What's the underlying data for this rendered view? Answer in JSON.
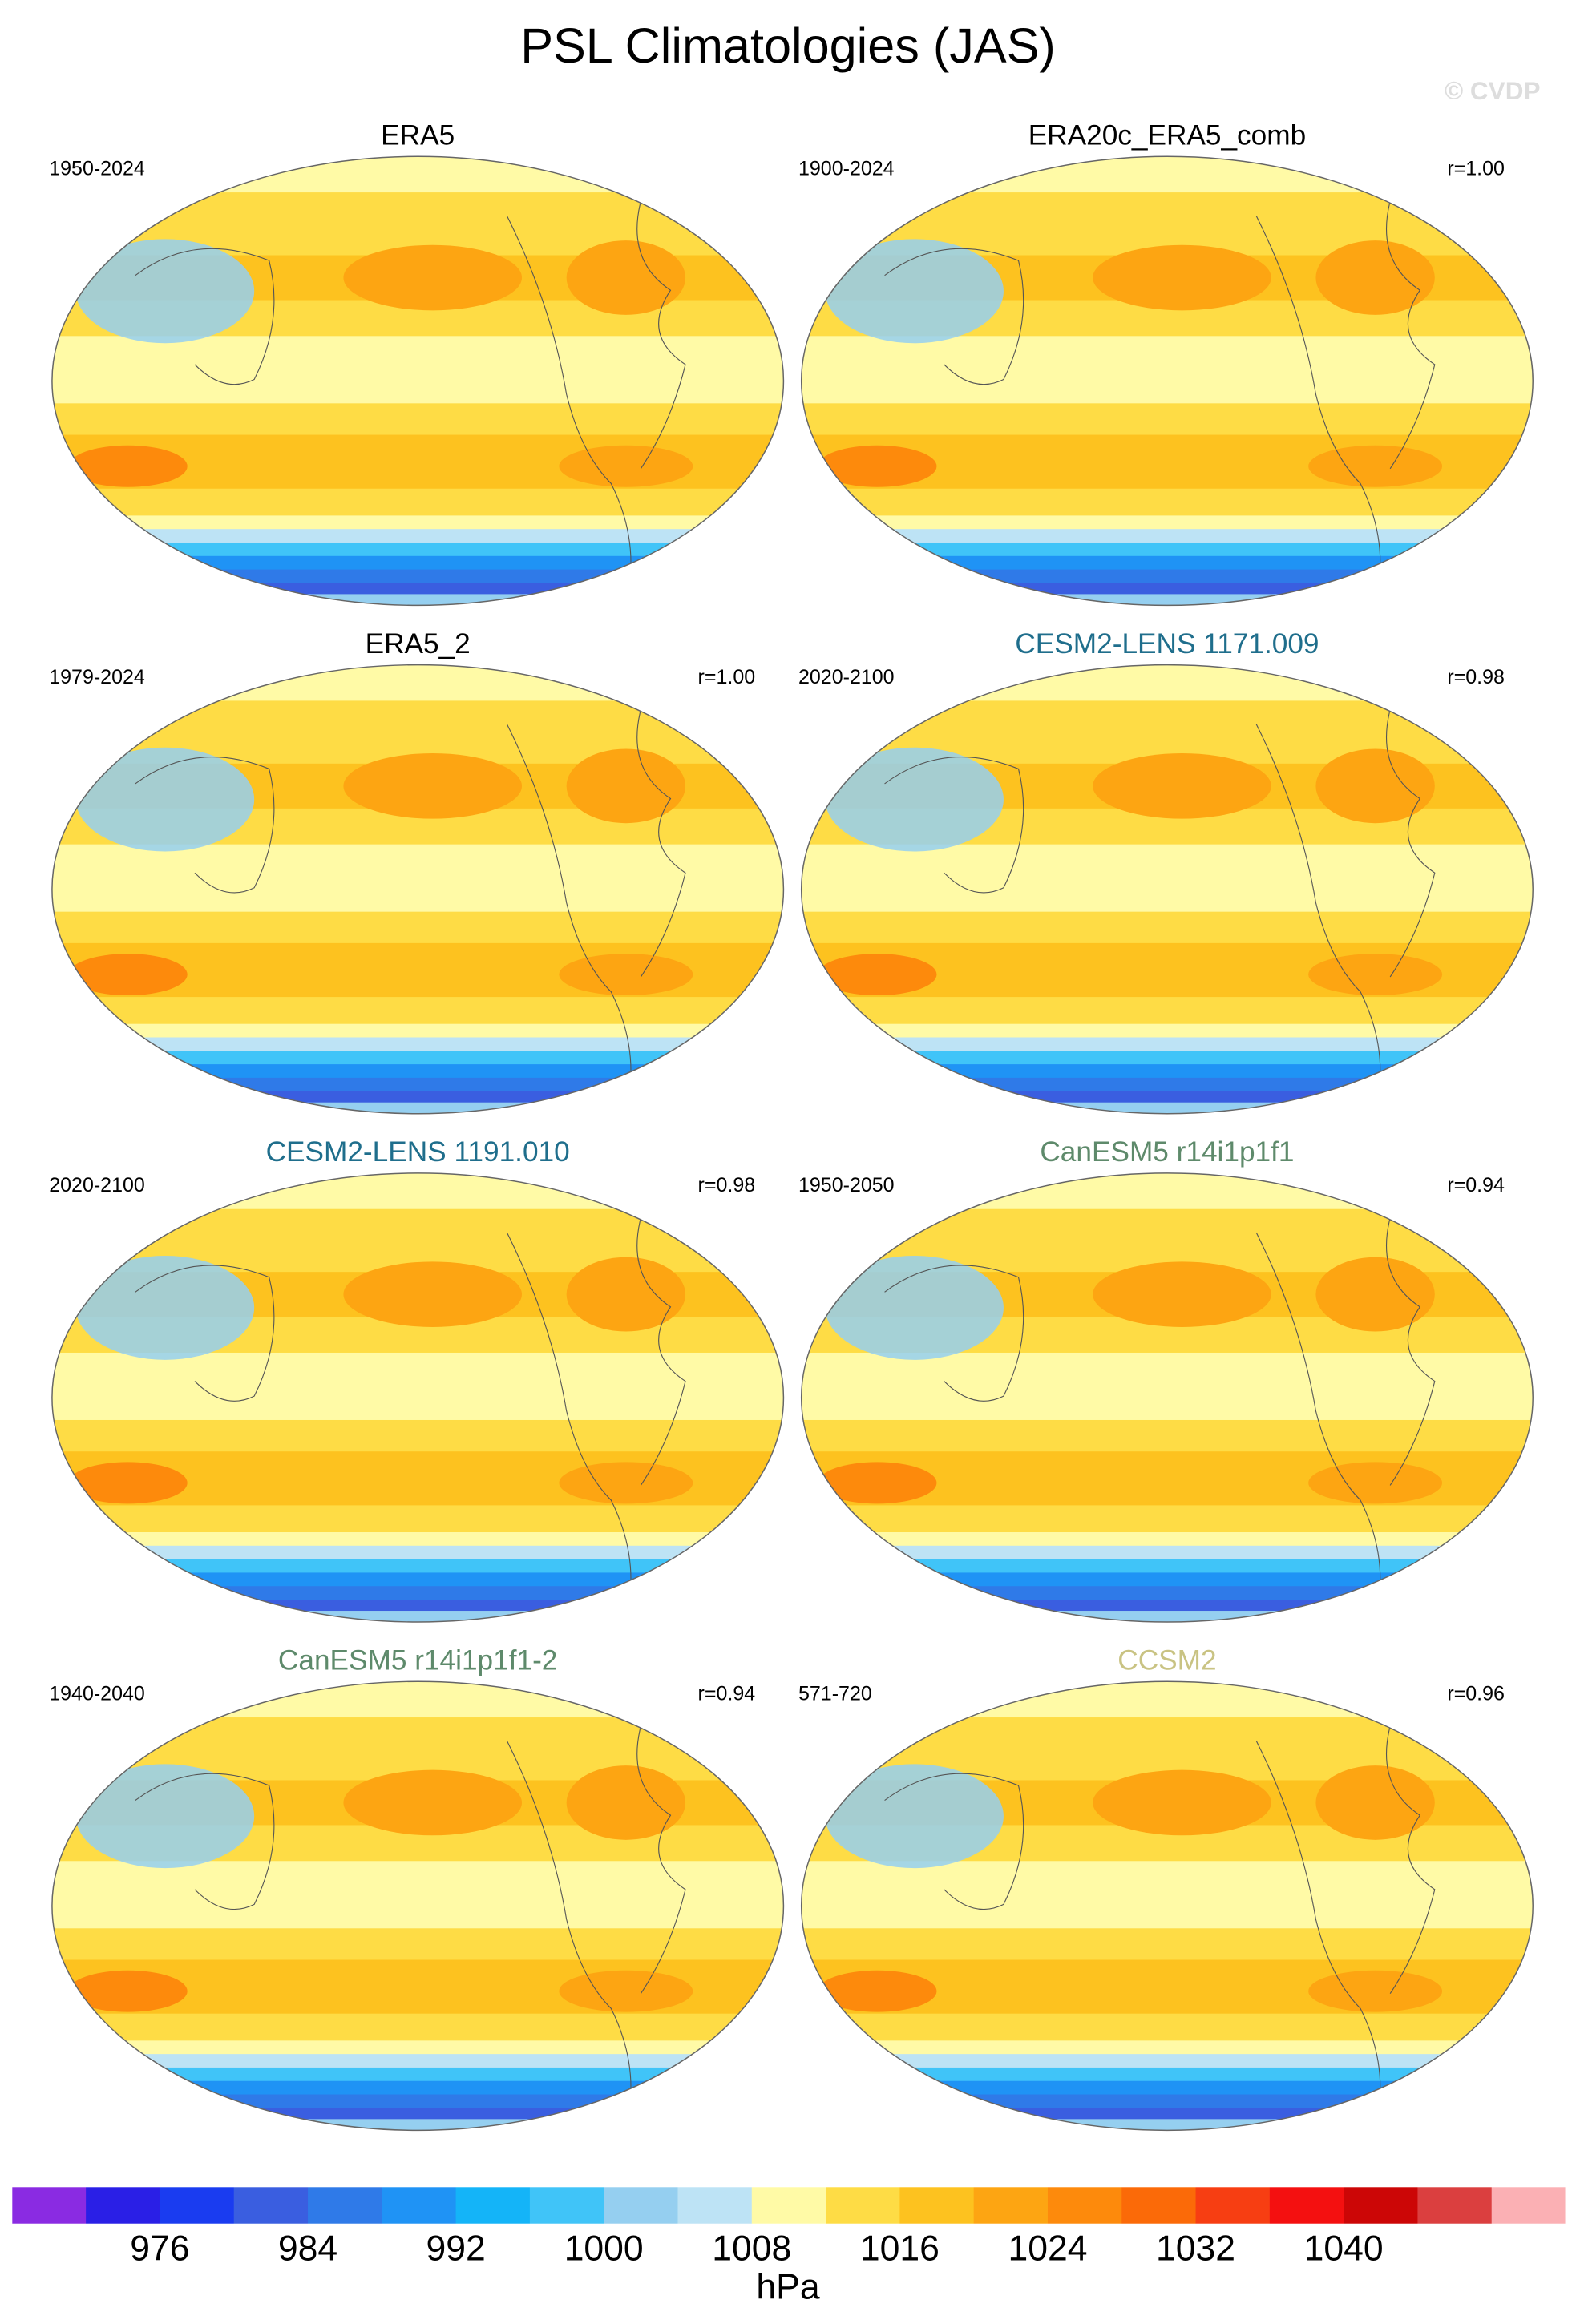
{
  "title": "PSL Climatologies (JAS)",
  "copyright": "© CVDP",
  "panels": [
    {
      "title": "ERA5",
      "title_color": "#000000",
      "period": "1950-2024"
    },
    {
      "title": "ERA20c_ERA5_comb",
      "title_color": "#000000",
      "period": "1900-2024",
      "r": "r=1.00"
    },
    {
      "title": "ERA5_2",
      "title_color": "#000000",
      "period": "1979-2024",
      "r": "r=1.00"
    },
    {
      "title": "CESM2-LENS 1171.009",
      "title_color": "#1f6e8c",
      "period": "2020-2100",
      "r": "r=0.98"
    },
    {
      "title": "CESM2-LENS 1191.010",
      "title_color": "#1f6e8c",
      "period": "2020-2100",
      "r": "r=0.98"
    },
    {
      "title": "CanESM5 r14i1p1f1",
      "title_color": "#5e8a6b",
      "period": "1950-2050",
      "r": "r=0.94"
    },
    {
      "title": "CanESM5 r14i1p1f1-2",
      "title_color": "#5e8a6b",
      "period": "1940-2040",
      "r": "r=0.94"
    },
    {
      "title": "CCSM2",
      "title_color": "#c9c383",
      "period": "571-720",
      "r": "r=0.96"
    }
  ],
  "colorbar": {
    "levels": [
      972,
      976,
      980,
      984,
      988,
      992,
      996,
      1000,
      1004,
      1008,
      1012,
      1016,
      1020,
      1024,
      1028,
      1032,
      1036,
      1040,
      1044
    ],
    "ticks": [
      976,
      984,
      992,
      1000,
      1008,
      1016,
      1024,
      1032,
      1040
    ],
    "colors": [
      "#8a2be2",
      "#2a1fe6",
      "#1a3cf0",
      "#3a5ee0",
      "#2f7ae8",
      "#1f93f5",
      "#14b4f8",
      "#40c4f8",
      "#95cff0",
      "#bde3f5",
      "#fffaa6",
      "#fedc45",
      "#fdc21f",
      "#fda512",
      "#fd8a0c",
      "#fb6a08",
      "#f73e12",
      "#f41010",
      "#cc0606",
      "#db3f3f",
      "#fbb0b4"
    ],
    "label": "hPa"
  }
}
